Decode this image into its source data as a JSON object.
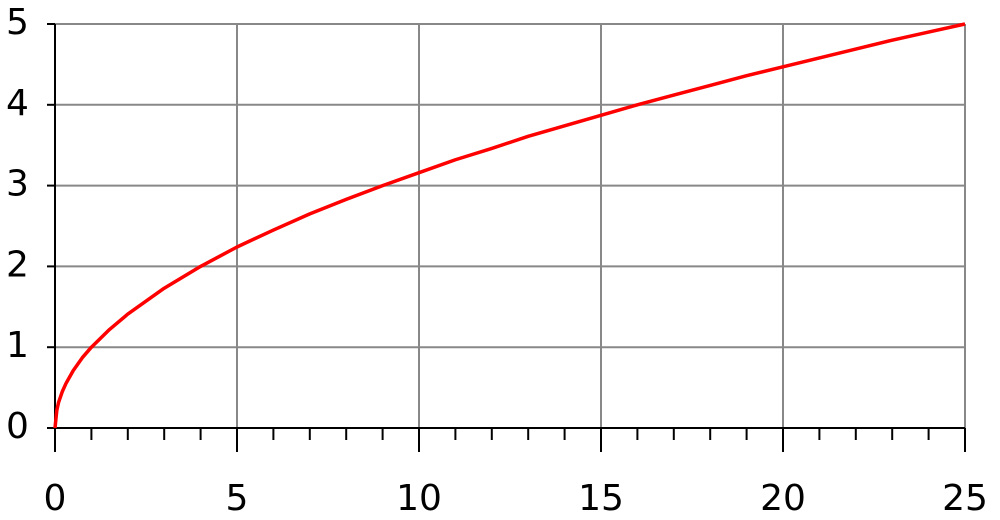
{
  "chart_data": {
    "type": "line",
    "x": [
      0,
      0.05,
      0.1,
      0.2,
      0.3,
      0.5,
      0.75,
      1,
      1.5,
      2,
      3,
      4,
      5,
      6,
      7,
      8,
      9,
      10,
      11,
      12,
      13,
      14,
      15,
      16,
      17,
      18,
      19,
      20,
      21,
      22,
      23,
      24,
      25
    ],
    "values": [
      0,
      0.22,
      0.32,
      0.45,
      0.55,
      0.71,
      0.87,
      1,
      1.22,
      1.41,
      1.73,
      2,
      2.24,
      2.45,
      2.65,
      2.83,
      3,
      3.16,
      3.32,
      3.46,
      3.61,
      3.74,
      3.87,
      4,
      4.12,
      4.24,
      4.36,
      4.47,
      4.58,
      4.69,
      4.8,
      4.9,
      5
    ],
    "color": "#ff0000",
    "xlim": [
      0,
      25
    ],
    "ylim": [
      0,
      5
    ],
    "xticks": [
      0,
      5,
      10,
      15,
      20,
      25
    ],
    "xminorticks": [
      1,
      2,
      3,
      4,
      6,
      7,
      8,
      9,
      11,
      12,
      13,
      14,
      16,
      17,
      18,
      19,
      21,
      22,
      23,
      24
    ],
    "yticks": [
      0,
      1,
      2,
      3,
      4,
      5
    ],
    "grid": true
  }
}
